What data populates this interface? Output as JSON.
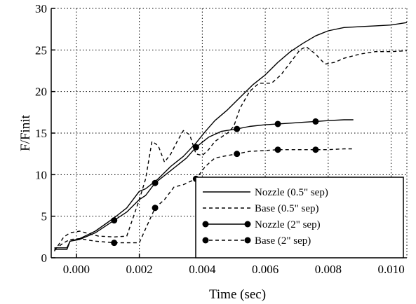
{
  "chart_data": {
    "type": "line",
    "title": "",
    "xlabel": "Time (sec)",
    "ylabel": "F/Finit",
    "xlim": [
      -0.0008,
      0.0105
    ],
    "ylim": [
      0,
      30
    ],
    "x_ticks": [
      0,
      0.002,
      0.004,
      0.006,
      0.008,
      0.01
    ],
    "x_tick_labels": [
      "0.000",
      "0.002",
      "0.004",
      "0.006",
      "0.008",
      "0.010"
    ],
    "y_ticks": [
      0,
      5,
      10,
      15,
      20,
      25,
      30
    ],
    "y_tick_labels": [
      "0",
      "5",
      "10",
      "15",
      "20",
      "25",
      "30"
    ],
    "grid": true,
    "legend_position": "bottom-right",
    "series": [
      {
        "name": "Nozzle (0.5\" sep)",
        "style": "solid",
        "marker": "none",
        "x": [
          -0.0007,
          -0.0003,
          -0.0002,
          0.0001,
          0.0006,
          0.0012,
          0.0016,
          0.002,
          0.0022,
          0.0026,
          0.003,
          0.0034,
          0.0038,
          0.0041,
          0.0044,
          0.0048,
          0.0052,
          0.0056,
          0.006,
          0.0064,
          0.0068,
          0.0072,
          0.0076,
          0.008,
          0.0085,
          0.009,
          0.0095,
          0.01,
          0.0105
        ],
        "y": [
          1.2,
          1.2,
          2.0,
          2.3,
          3.2,
          4.8,
          6.0,
          8.0,
          8.3,
          9.5,
          11.0,
          12.2,
          13.8,
          15.2,
          16.5,
          17.8,
          19.3,
          20.8,
          22.0,
          23.5,
          24.8,
          25.8,
          26.7,
          27.3,
          27.7,
          27.8,
          27.9,
          28.0,
          28.3
        ]
      },
      {
        "name": "Base (0.5\" sep)",
        "style": "dashed",
        "marker": "none",
        "x": [
          -0.0007,
          -0.0004,
          -0.0002,
          0.0001,
          0.0003,
          0.0007,
          0.0012,
          0.0016,
          0.002,
          0.0022,
          0.0024,
          0.0026,
          0.0028,
          0.003,
          0.0032,
          0.0034,
          0.0036,
          0.0038,
          0.004,
          0.0042,
          0.0044,
          0.0046,
          0.0048,
          0.005,
          0.0052,
          0.0055,
          0.0058,
          0.0062,
          0.0065,
          0.0068,
          0.0071,
          0.0073,
          0.0076,
          0.0079,
          0.0082,
          0.0085,
          0.009,
          0.0095,
          0.01,
          0.0105
        ],
        "y": [
          0.8,
          2.5,
          3.0,
          3.2,
          3.0,
          2.6,
          2.5,
          2.6,
          7.0,
          9.5,
          14.0,
          13.5,
          11.5,
          12.5,
          14.0,
          15.3,
          14.8,
          12.5,
          12.3,
          13.0,
          14.0,
          14.5,
          15.0,
          15.8,
          18.0,
          20.0,
          21.0,
          21.0,
          22.0,
          23.5,
          25.0,
          25.4,
          24.5,
          23.3,
          23.5,
          24.0,
          24.5,
          24.8,
          24.8,
          24.9
        ]
      },
      {
        "name": "Nozzle (2\" sep)",
        "style": "solid",
        "marker": "circle",
        "x": [
          -0.0007,
          -0.0003,
          -0.0002,
          0.0001,
          0.0006,
          0.0012,
          0.0016,
          0.002,
          0.0022,
          0.0025,
          0.003,
          0.0035,
          0.0038,
          0.0042,
          0.0046,
          0.0051,
          0.0055,
          0.006,
          0.0064,
          0.0068,
          0.0072,
          0.0076,
          0.008,
          0.0085,
          0.0088
        ],
        "y": [
          1.0,
          1.0,
          2.0,
          2.2,
          3.0,
          4.5,
          5.5,
          7.0,
          7.5,
          9.0,
          10.5,
          12.0,
          13.3,
          14.5,
          15.2,
          15.5,
          15.8,
          16.0,
          16.1,
          16.2,
          16.3,
          16.4,
          16.5,
          16.6,
          16.6
        ],
        "marker_x": [
          0.0012,
          0.0025,
          0.0038,
          0.0051,
          0.0064,
          0.0076
        ],
        "marker_y": [
          4.5,
          9.0,
          13.3,
          15.5,
          16.1,
          16.4
        ]
      },
      {
        "name": "Base (2\" sep)",
        "style": "dashed",
        "marker": "circle",
        "x": [
          -0.0007,
          -0.0004,
          -0.0002,
          0.0001,
          0.0006,
          0.0012,
          0.0016,
          0.002,
          0.0022,
          0.0025,
          0.0028,
          0.0031,
          0.0034,
          0.0038,
          0.0041,
          0.0044,
          0.0048,
          0.0051,
          0.0055,
          0.006,
          0.0064,
          0.0068,
          0.0072,
          0.0076,
          0.008,
          0.0085,
          0.0088
        ],
        "y": [
          1.0,
          1.8,
          2.2,
          2.3,
          2.0,
          1.8,
          1.8,
          1.8,
          3.5,
          6.0,
          7.0,
          8.5,
          8.8,
          9.5,
          11.0,
          12.0,
          12.3,
          12.5,
          12.8,
          12.9,
          13.0,
          13.0,
          13.0,
          13.0,
          13.0,
          13.1,
          13.1
        ],
        "marker_x": [
          0.0012,
          0.0025,
          0.0038,
          0.0051,
          0.0064,
          0.0076
        ],
        "marker_y": [
          1.8,
          6.0,
          9.5,
          12.5,
          13.0,
          13.0
        ]
      }
    ]
  }
}
